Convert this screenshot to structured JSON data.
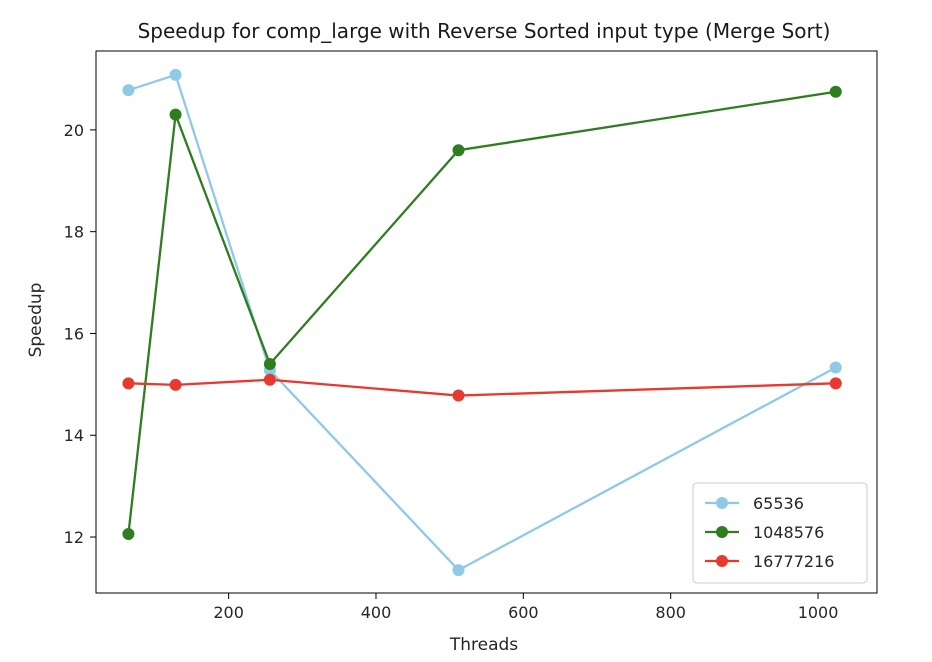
{
  "chart_data": {
    "type": "line",
    "title": "Speedup for comp_large with Reverse Sorted input type (Merge Sort)",
    "xlabel": "Threads",
    "ylabel": "Speedup",
    "xlim": [
      20,
      1080
    ],
    "ylim": [
      10.9,
      21.55
    ],
    "xticks": [
      200,
      400,
      600,
      800,
      1000
    ],
    "yticks": [
      12,
      14,
      16,
      18,
      20
    ],
    "grid": false,
    "legend_position": "lower-right",
    "x": [
      64,
      128,
      256,
      512,
      1024
    ],
    "series": [
      {
        "name": "65536",
        "color": "#8ecae6",
        "values": [
          20.78,
          21.08,
          15.28,
          11.35,
          15.33
        ]
      },
      {
        "name": "1048576",
        "color": "#2e7d1e",
        "values": [
          12.06,
          20.3,
          15.4,
          19.6,
          20.75
        ]
      },
      {
        "name": "16777216",
        "color": "#e8392e",
        "values": [
          15.02,
          14.99,
          15.09,
          14.78,
          15.02
        ]
      }
    ]
  }
}
